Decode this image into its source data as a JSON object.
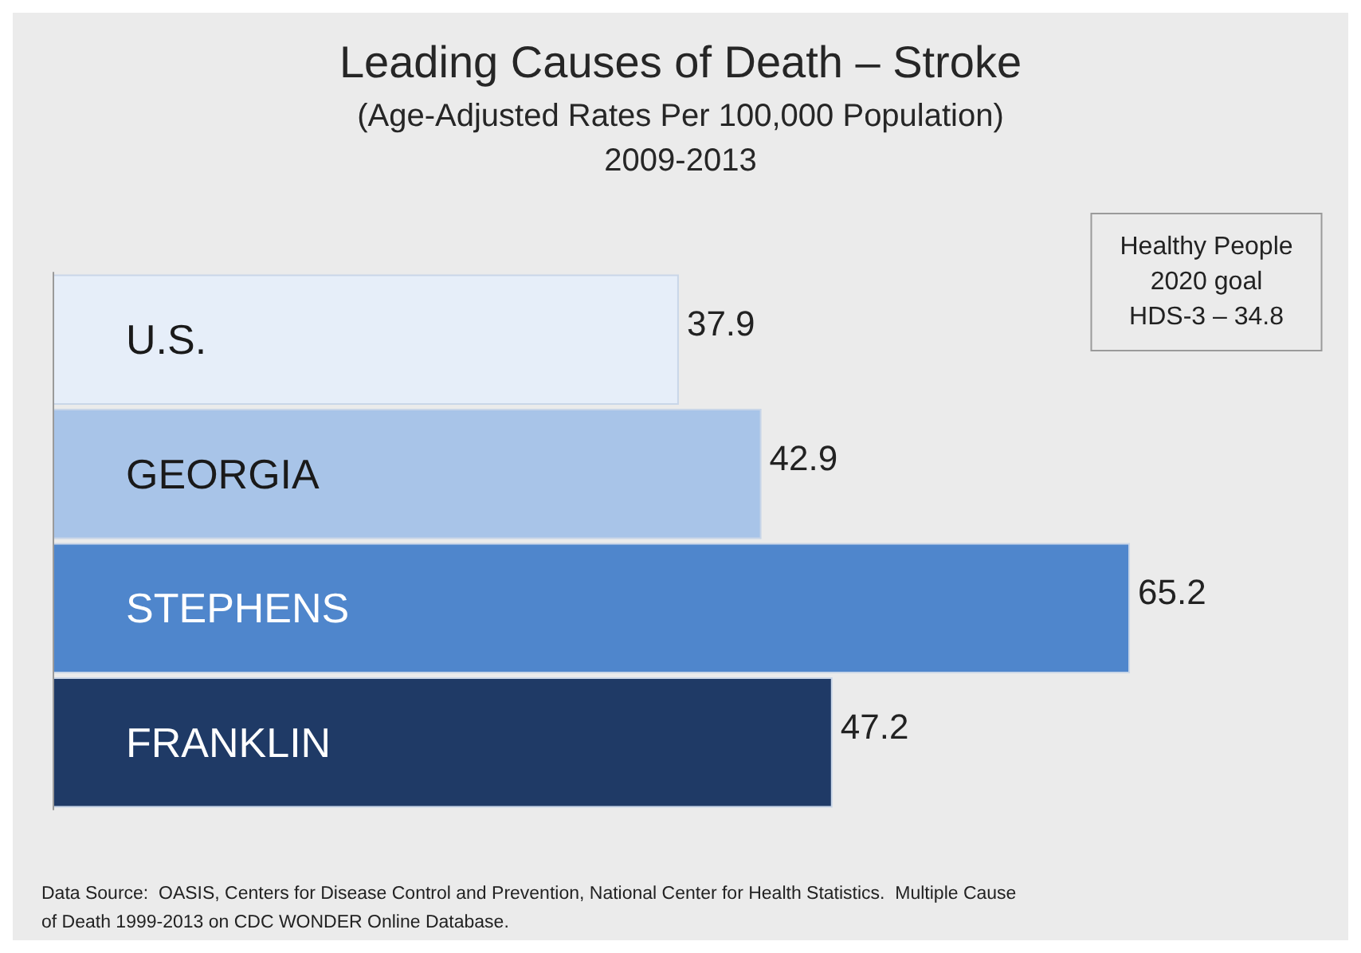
{
  "chart_data": {
    "type": "bar",
    "orientation": "horizontal",
    "title": "Leading Causes of Death – Stroke",
    "subtitle": "(Age-Adjusted Rates Per 100,000 Population)\n2009-2013",
    "categories": [
      "U.S.",
      "GEORGIA",
      "STEPHENS",
      "FRANKLIN"
    ],
    "values": [
      37.9,
      42.9,
      65.2,
      47.2
    ],
    "colors": [
      "#e6eef9",
      "#a8c4e8",
      "#4f86cc",
      "#1f3a66"
    ],
    "data_labels": true,
    "annotations": [
      "Healthy People\n2020 goal\nHDS-3 – 34.8",
      "Data Source:  OASIS, Centers for Disease Control and Prevention, National Center for Health Statistics.  Multiple Cause\nof Death 1999-2013 on CDC WONDER Online Database."
    ]
  }
}
